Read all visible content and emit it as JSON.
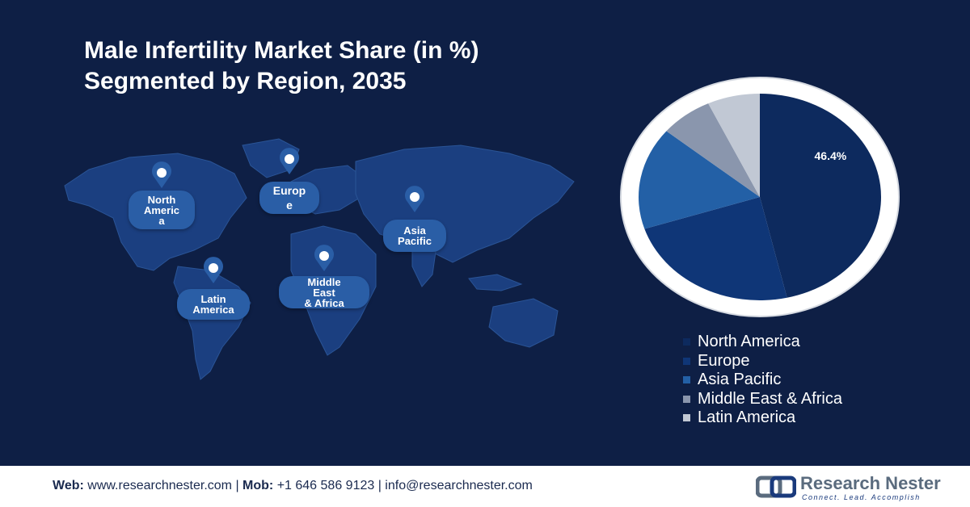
{
  "title": {
    "line1": "Male Infertility Market Share (in %)",
    "line2": "Segmented by Region, 2035"
  },
  "map": {
    "regions": [
      {
        "label_lines": [
          "North",
          "Americ",
          "a"
        ]
      },
      {
        "label_lines": [
          "Europ",
          "e"
        ]
      },
      {
        "label_lines": [
          "Asia",
          "Pacific"
        ]
      },
      {
        "label_lines": [
          "Latin",
          "America"
        ]
      },
      {
        "label_lines": [
          "Middle",
          "East",
          "& Africa"
        ]
      }
    ]
  },
  "chart_data": {
    "type": "pie",
    "slices": [
      {
        "label": "North America",
        "value": 46.4,
        "color": "#0d2a5e",
        "data_label": "46.4%"
      },
      {
        "label": "Europe",
        "value": 23.6,
        "color": "#0f3677",
        "data_label": ""
      },
      {
        "label": "Asia Pacific",
        "value": 16.0,
        "color": "#2360a6",
        "data_label": ""
      },
      {
        "label": "Middle East & Africa",
        "value": 7.0,
        "color": "#8a96ad",
        "data_label": ""
      },
      {
        "label": "Latin America",
        "value": 7.0,
        "color": "#c1c8d4",
        "data_label": ""
      }
    ],
    "legend_position": "bottom-right"
  },
  "footer": {
    "web_label": "Web:",
    "web_value": " www.researchnester.com | ",
    "mob_label": "Mob:",
    "mob_value": " +1 646 586 9123 | info@researchnester.com"
  },
  "logo": {
    "name": "Research Nester",
    "tagline": "Connect. Lead. Accomplish"
  }
}
